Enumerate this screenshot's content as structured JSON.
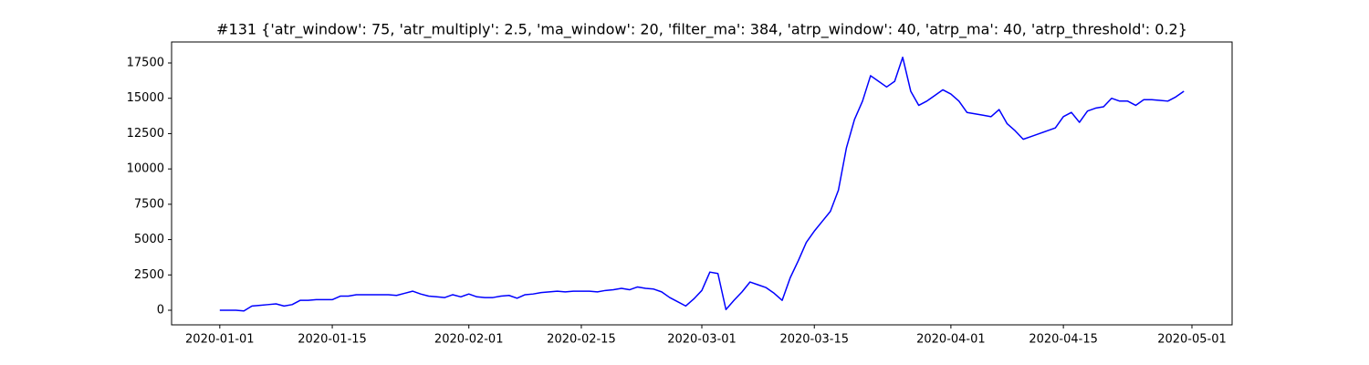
{
  "chart_data": {
    "type": "line",
    "title": "#131 {'atr_window': 75, 'atr_multiply': 2.5, 'ma_window': 20, 'filter_ma': 384, 'atrp_window': 40, 'atrp_ma': 40, 'atrp_threshold': 0.2}",
    "x": [
      "2020-01-01",
      "2020-01-02",
      "2020-01-03",
      "2020-01-04",
      "2020-01-05",
      "2020-01-06",
      "2020-01-07",
      "2020-01-08",
      "2020-01-09",
      "2020-01-10",
      "2020-01-11",
      "2020-01-12",
      "2020-01-13",
      "2020-01-14",
      "2020-01-15",
      "2020-01-16",
      "2020-01-17",
      "2020-01-18",
      "2020-01-19",
      "2020-01-20",
      "2020-01-21",
      "2020-01-22",
      "2020-01-23",
      "2020-01-24",
      "2020-01-25",
      "2020-01-26",
      "2020-01-27",
      "2020-01-28",
      "2020-01-29",
      "2020-01-30",
      "2020-01-31",
      "2020-02-01",
      "2020-02-02",
      "2020-02-03",
      "2020-02-04",
      "2020-02-05",
      "2020-02-06",
      "2020-02-07",
      "2020-02-08",
      "2020-02-09",
      "2020-02-10",
      "2020-02-11",
      "2020-02-12",
      "2020-02-13",
      "2020-02-14",
      "2020-02-15",
      "2020-02-16",
      "2020-02-17",
      "2020-02-18",
      "2020-02-19",
      "2020-02-20",
      "2020-02-21",
      "2020-02-22",
      "2020-02-23",
      "2020-02-24",
      "2020-02-25",
      "2020-02-26",
      "2020-02-27",
      "2020-02-28",
      "2020-02-29",
      "2020-03-01",
      "2020-03-02",
      "2020-03-03",
      "2020-03-04",
      "2020-03-05",
      "2020-03-06",
      "2020-03-07",
      "2020-03-08",
      "2020-03-09",
      "2020-03-10",
      "2020-03-11",
      "2020-03-12",
      "2020-03-13",
      "2020-03-14",
      "2020-03-15",
      "2020-03-16",
      "2020-03-17",
      "2020-03-18",
      "2020-03-19",
      "2020-03-20",
      "2020-03-21",
      "2020-03-22",
      "2020-03-23",
      "2020-03-24",
      "2020-03-25",
      "2020-03-26",
      "2020-03-27",
      "2020-03-28",
      "2020-03-29",
      "2020-03-30",
      "2020-03-31",
      "2020-04-01",
      "2020-04-02",
      "2020-04-03",
      "2020-04-04",
      "2020-04-05",
      "2020-04-06",
      "2020-04-07",
      "2020-04-08",
      "2020-04-09",
      "2020-04-10",
      "2020-04-11",
      "2020-04-12",
      "2020-04-13",
      "2020-04-14",
      "2020-04-15",
      "2020-04-16",
      "2020-04-17",
      "2020-04-18",
      "2020-04-19",
      "2020-04-20",
      "2020-04-21",
      "2020-04-22",
      "2020-04-23",
      "2020-04-24",
      "2020-04-25",
      "2020-04-26",
      "2020-04-27",
      "2020-04-28",
      "2020-04-29",
      "2020-04-30"
    ],
    "series": [
      {
        "color": "#0000ff",
        "values": [
          0,
          0,
          0,
          -50,
          300,
          350,
          400,
          450,
          300,
          400,
          700,
          700,
          750,
          750,
          750,
          1000,
          1000,
          1100,
          1100,
          1100,
          1100,
          1100,
          1050,
          1200,
          1350,
          1150,
          1000,
          950,
          900,
          1100,
          950,
          1150,
          950,
          900,
          900,
          1000,
          1050,
          850,
          1100,
          1150,
          1250,
          1300,
          1350,
          1300,
          1350,
          1350,
          1350,
          1300,
          1400,
          1450,
          1550,
          1450,
          1650,
          1550,
          1500,
          1300,
          900,
          600,
          300,
          800,
          1400,
          2700,
          2600,
          50,
          700,
          1300,
          2000,
          1800,
          1600,
          1200,
          700,
          2300,
          3500,
          4800,
          5600,
          6300,
          7000,
          8500,
          11500,
          13500,
          14800,
          16600,
          16200,
          15800,
          16200,
          17900,
          15500,
          14500,
          14800,
          15200,
          15600,
          15300,
          14800,
          14000,
          13900,
          13800,
          13700,
          14200,
          13200,
          12700,
          12100,
          12300,
          12500,
          12700,
          12900,
          13700,
          14000,
          13300,
          14100,
          14300,
          14400,
          15000,
          14800,
          14800,
          14500,
          14900,
          14900,
          14850,
          14800,
          15100,
          15500
        ]
      }
    ],
    "xlim": [
      "2019-12-26",
      "2020-05-06"
    ],
    "xticks": [
      "2020-01-01",
      "2020-01-15",
      "2020-02-01",
      "2020-02-15",
      "2020-03-01",
      "2020-03-15",
      "2020-04-01",
      "2020-04-15",
      "2020-05-01"
    ],
    "ylim": [
      -1033,
      18985
    ],
    "yticks": [
      0,
      2500,
      5000,
      7500,
      10000,
      12500,
      15000,
      17500
    ]
  }
}
